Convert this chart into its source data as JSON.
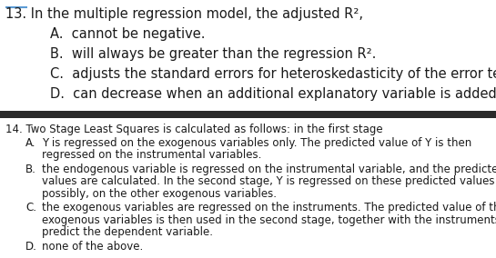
{
  "bg_color": "#ffffff",
  "separator_color": "#2a2a2a",
  "text_color": "#1a1a1a",
  "q13_header": "13. In the multiple regression model, the adjusted R²,",
  "q13_options": [
    "A.  cannot be negative.",
    "B.  will always be greater than the regression R².",
    "C.  adjusts the standard errors for heteroskedasticity of the error term.",
    "D.  can decrease when an additional explanatory variable is added."
  ],
  "q14_header": "14. Two Stage Least Squares is calculated as follows: in the first stage",
  "q14_options_letter": [
    "A.",
    "B.",
    "C.",
    "D."
  ],
  "q14_options_text": [
    "Y is regressed on the exogenous variables only. The predicted value of Y is then\n       regressed on the instrumental variables.",
    "the endogenous variable is regressed on the instrumental variable, and the predicted\n       values are calculated. In the second stage, Y is regressed on these predicted values and,\n       possibly, on the other exogenous variables.",
    "the exogenous variables are regressed on the instruments. The predicted value of the\n       exogenous variables is then used in the second stage, together with the instruments, to\n       predict the dependent variable.",
    "none of the above."
  ],
  "fs13": 10.5,
  "fs14": 8.5,
  "font_family": "DejaVu Sans"
}
